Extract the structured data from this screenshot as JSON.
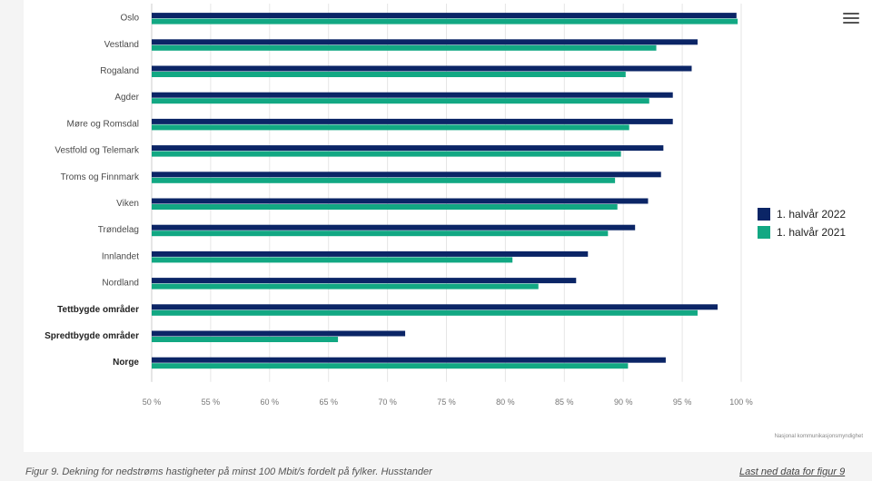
{
  "chart_data": {
    "type": "bar",
    "orientation": "horizontal",
    "categories": [
      "Oslo",
      "Vestland",
      "Rogaland",
      "Agder",
      "Møre og Romsdal",
      "Vestfold og Telemark",
      "Troms og Finnmark",
      "Viken",
      "Trøndelag",
      "Innlandet",
      "Nordland",
      "Tettbygde områder",
      "Spredtbygde områder",
      "Norge"
    ],
    "bold_categories": [
      "Tettbygde områder",
      "Spredtbygde områder",
      "Norge"
    ],
    "series": [
      {
        "name": "1. halvår 2022",
        "color": "#0b2566",
        "values": [
          99.6,
          96.3,
          95.8,
          94.2,
          94.2,
          93.4,
          93.2,
          92.1,
          91.0,
          87.0,
          86.0,
          98.0,
          71.5,
          93.6
        ]
      },
      {
        "name": "1. halvår 2021",
        "color": "#12a883",
        "values": [
          99.7,
          92.8,
          90.2,
          92.2,
          90.5,
          89.8,
          89.3,
          89.5,
          88.7,
          80.6,
          82.8,
          96.3,
          65.8,
          90.4
        ]
      }
    ],
    "xlim": [
      50,
      100
    ],
    "xticks": [
      50,
      55,
      60,
      65,
      70,
      75,
      80,
      85,
      90,
      95,
      100
    ],
    "xtick_labels": [
      "50 %",
      "55 %",
      "60 %",
      "65 %",
      "70 %",
      "75 %",
      "80 %",
      "85 %",
      "90 %",
      "95 %",
      "100 %"
    ],
    "grid": true,
    "legend": "right"
  },
  "legend": [
    {
      "label": "1. halvår 2022",
      "color": "#0b2566"
    },
    {
      "label": "1. halvår 2021",
      "color": "#12a883"
    }
  ],
  "menu_icon": "hamburger-menu-icon",
  "source_credit": "Nasjonal kommunikasjonsmyndighet",
  "caption": "Figur 9. Dekning for nedstrøms hastigheter på minst 100 Mbit/s fordelt på fylker. Husstander",
  "download_link": "Last ned data for figur 9"
}
